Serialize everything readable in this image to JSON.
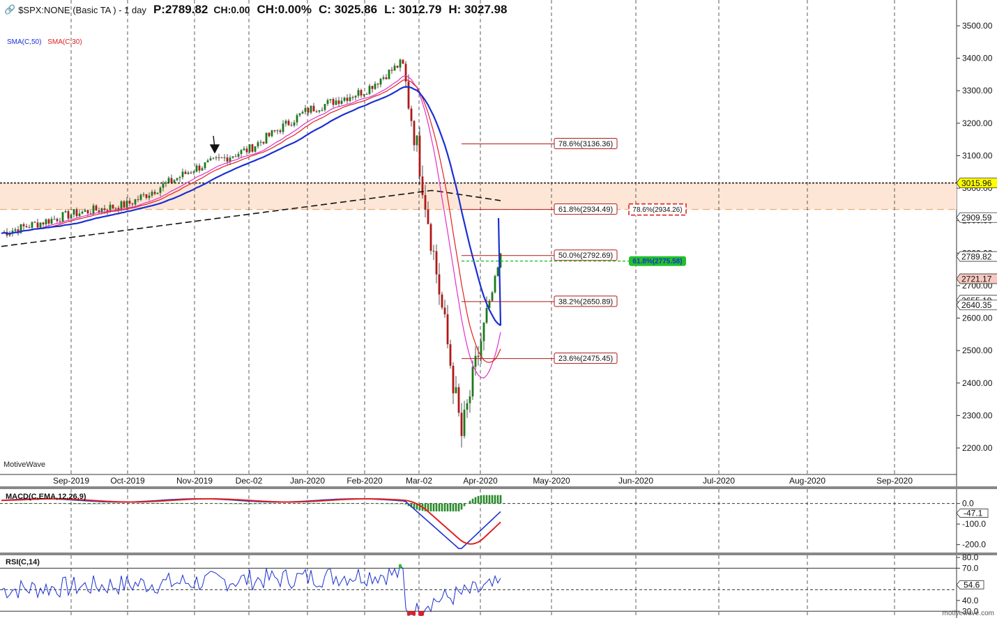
{
  "header": {
    "symbol": "$SPX:NONE (Basic TA ) - 1 day",
    "price": "P:2789.82",
    "change": "CH:0.00",
    "change_pct": "CH:0.00%",
    "close": "C: 3025.86",
    "low": "L: 3012.79",
    "high": "H: 3027.98"
  },
  "legend": {
    "sma50": "SMA(C,50)",
    "sma30": "SMA(C,30)",
    "sma50_color": "#1a2fd1",
    "sma30_color": "#e02020"
  },
  "brand": "MotiveWave",
  "footer_brand": "motivewave.com",
  "macd_title": "MACD(C,EMA,12,26,9)",
  "rsi_title": "RSI(C,14)",
  "chart_data": {
    "type": "candlestick",
    "x_ticks": [
      "Sep-2019",
      "Oct-2019",
      "Nov-2019",
      "Dec-02",
      "Jan-2020",
      "Feb-2020",
      "Mar-02",
      "Apr-2020",
      "May-2020",
      "Jun-2020",
      "Jul-2020",
      "Aug-2020",
      "Sep-2020"
    ],
    "y_ticks": [
      "3500.00",
      "3400.00",
      "3300.00",
      "3200.00",
      "3100.00",
      "3000.00",
      "2900.00",
      "2800.00",
      "2700.00",
      "2600.00",
      "2500.00",
      "2400.00",
      "2300.00",
      "2200.00"
    ],
    "ylim": [
      2165,
      3560
    ],
    "series_path": [
      [
        "Aug-2019",
        2860
      ],
      [
        "Sep-2019",
        2920
      ],
      [
        "Oct-2019",
        2950
      ],
      [
        "Nov-2019",
        3060
      ],
      [
        "Dec-02",
        3120
      ],
      [
        "Jan-2020",
        3240
      ],
      [
        "Feb-2020",
        3300
      ],
      [
        "Feb-19-2020",
        3386
      ],
      [
        "Mar-02",
        3090
      ],
      [
        "Mar-23-2020",
        2237
      ],
      [
        "Apr-2020",
        2520
      ],
      [
        "Apr-08-2020",
        2789
      ]
    ],
    "fibonacci_retracement": [
      {
        "label": "78.6%(3136.36)",
        "value": 3136.36
      },
      {
        "label": "61.8%(2934.49)",
        "value": 2934.49
      },
      {
        "label": "50.0%(2792.69)",
        "value": 2792.69
      },
      {
        "label": "38.2%(2650.89)",
        "value": 2650.89
      },
      {
        "label": "23.6%(2475.45)",
        "value": 2475.45
      }
    ],
    "fibonacci_projection": [
      {
        "label": "78.6%(2934.26)",
        "value": 2934.26,
        "color": "#e02020"
      },
      {
        "label": "61.8%(2775.58)",
        "value": 2775.58,
        "color": "#22c02a"
      }
    ],
    "resistance_zone": {
      "top": 3015.96,
      "bottom": 2934.49
    },
    "price_tags": [
      {
        "text": "3015.96",
        "value": 3015.96,
        "bg": "#ffff00"
      },
      {
        "text": "2909.59",
        "value": 2909.59,
        "bg": "#ffffff"
      },
      {
        "text": "2789.82",
        "value": 2789.82,
        "bg": "#ffffff"
      },
      {
        "text": "2721.17",
        "value": 2721.17,
        "bg": "#f6c8c0"
      },
      {
        "text": "2655.19",
        "value": 2655.19,
        "bg": "#ffffff"
      },
      {
        "text": "2640.35",
        "value": 2640.35,
        "bg": "#ffffff"
      }
    ],
    "macd": {
      "y_ticks": [
        "0.0",
        "-100.0",
        "-200.0"
      ],
      "ylim": [
        -235,
        70
      ],
      "current_tag": "-47.1"
    },
    "rsi": {
      "y_ticks": [
        "80.0",
        "70.0",
        "40.0",
        "30.0"
      ],
      "ylim": [
        25,
        82
      ],
      "current_tag": "54.6",
      "overbought": 70,
      "oversold": 30
    }
  }
}
